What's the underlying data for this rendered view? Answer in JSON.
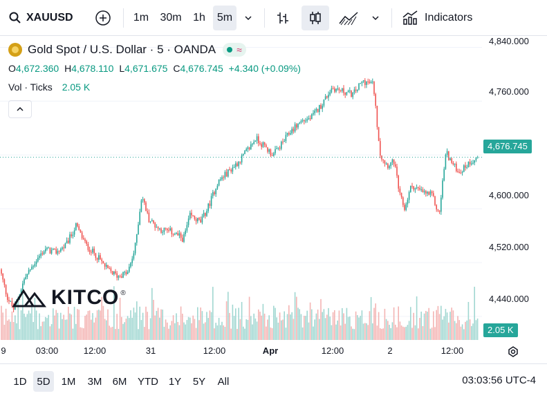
{
  "toolbar": {
    "symbol": "XAUUSD",
    "intervals": [
      "1m",
      "30m",
      "1h",
      "5m"
    ],
    "active_interval": "5m",
    "indicators_label": "Indicators"
  },
  "legend": {
    "title": "Gold Spot / U.S. Dollar · 5 · OANDA",
    "ohlc": {
      "o_label": "O",
      "o": "4,672.360",
      "h_label": "H",
      "h": "4,678.110",
      "l_label": "L",
      "l": "4,671.675",
      "c_label": "C",
      "c": "4,676.745",
      "change": "+4.340 (+0.09%)"
    },
    "volume_label": "Vol · Ticks",
    "volume_value": "2.05 K"
  },
  "watermark": "KITCO",
  "price_axis": {
    "labels": [
      "4,840.000",
      "4,760.000",
      "4,680.000",
      "4,600.000",
      "4,520.000",
      "4,440.000"
    ],
    "current_price": "4,676.745",
    "current_volume": "2.05 K"
  },
  "time_axis": {
    "labels": [
      "9",
      "03:00",
      "12:00",
      "31",
      "12:00",
      "Apr",
      "12:00",
      "2",
      "12:00"
    ]
  },
  "bottom_bar": {
    "ranges": [
      "1D",
      "5D",
      "1M",
      "3M",
      "6M",
      "YTD",
      "1Y",
      "5Y",
      "All"
    ],
    "active_range": "5D",
    "clock": "03:03:56 UTC-4"
  },
  "colors": {
    "up": "#26a69a",
    "down": "#ef5350",
    "vol_up": "#8fd0c9",
    "vol_down": "#f2a7a6",
    "badge": "#26a69a"
  },
  "chart_data": {
    "type": "candlestick",
    "symbol": "XAUUSD",
    "interval": "5m",
    "ylim": [
      4405,
      4857
    ],
    "y_ticks": [
      4840,
      4760,
      4680,
      4600,
      4520,
      4440
    ],
    "x_ticks": [
      "9",
      "03:00",
      "12:00",
      "31",
      "12:00",
      "Apr",
      "12:00",
      "2",
      "12:00"
    ],
    "price_path": [
      [
        0,
        4510
      ],
      [
        10,
        4470
      ],
      [
        20,
        4450
      ],
      [
        35,
        4495
      ],
      [
        50,
        4520
      ],
      [
        65,
        4540
      ],
      [
        80,
        4535
      ],
      [
        95,
        4545
      ],
      [
        110,
        4575
      ],
      [
        125,
        4545
      ],
      [
        140,
        4530
      ],
      [
        155,
        4510
      ],
      [
        170,
        4500
      ],
      [
        185,
        4505
      ],
      [
        195,
        4540
      ],
      [
        205,
        4620
      ],
      [
        215,
        4585
      ],
      [
        230,
        4570
      ],
      [
        250,
        4565
      ],
      [
        265,
        4555
      ],
      [
        275,
        4590
      ],
      [
        290,
        4580
      ],
      [
        300,
        4600
      ],
      [
        315,
        4640
      ],
      [
        330,
        4655
      ],
      [
        345,
        4670
      ],
      [
        360,
        4690
      ],
      [
        370,
        4705
      ],
      [
        385,
        4690
      ],
      [
        395,
        4680
      ],
      [
        410,
        4700
      ],
      [
        420,
        4715
      ],
      [
        435,
        4730
      ],
      [
        450,
        4735
      ],
      [
        465,
        4755
      ],
      [
        480,
        4780
      ],
      [
        495,
        4775
      ],
      [
        510,
        4770
      ],
      [
        525,
        4790
      ],
      [
        540,
        4785
      ],
      [
        545,
        4730
      ],
      [
        550,
        4680
      ],
      [
        560,
        4665
      ],
      [
        570,
        4670
      ],
      [
        578,
        4620
      ],
      [
        585,
        4600
      ],
      [
        595,
        4635
      ],
      [
        610,
        4625
      ],
      [
        625,
        4620
      ],
      [
        635,
        4590
      ],
      [
        640,
        4640
      ],
      [
        645,
        4685
      ],
      [
        655,
        4665
      ],
      [
        665,
        4655
      ],
      [
        680,
        4670
      ],
      [
        692,
        4677
      ]
    ],
    "last_price": 4676.745,
    "last_volume_k": 2.05
  }
}
